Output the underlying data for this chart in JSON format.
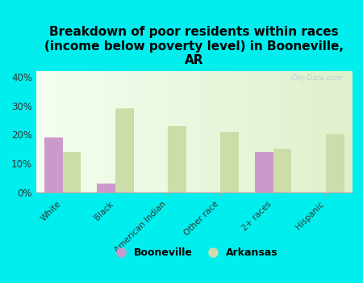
{
  "title": "Breakdown of poor residents within races\n(income below poverty level) in Booneville,\nAR",
  "categories": [
    "White",
    "Black",
    "American Indian",
    "Other race",
    "2+ races",
    "Hispanic"
  ],
  "booneville": [
    19,
    3,
    0,
    0,
    14,
    0
  ],
  "arkansas": [
    14,
    29,
    23,
    21,
    15,
    20
  ],
  "booneville_color": "#cc99cc",
  "arkansas_color": "#ccddaa",
  "bg_color": "#00eeee",
  "ylim": [
    0,
    42
  ],
  "yticks": [
    0,
    10,
    20,
    30,
    40
  ],
  "ytick_labels": [
    "0%",
    "10%",
    "20%",
    "30%",
    "40%"
  ],
  "bar_width": 0.35,
  "title_fontsize": 11,
  "watermark": "City-Data.com"
}
